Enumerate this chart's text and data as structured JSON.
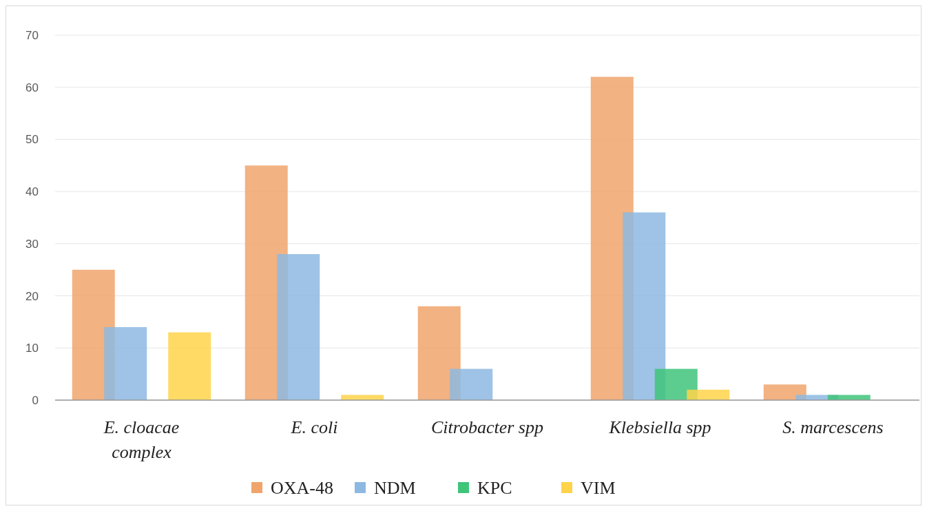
{
  "chart_data": {
    "type": "bar",
    "categories": [
      "E. cloacae complex",
      "E. coli",
      "Citrobacter spp",
      "Klebsiella spp",
      "S. marcescens"
    ],
    "series": [
      {
        "name": "OXA-48",
        "color": "#f0a46c",
        "values": [
          25,
          45,
          18,
          62,
          3
        ]
      },
      {
        "name": "NDM",
        "color": "#8db8e2",
        "values": [
          14,
          28,
          6,
          36,
          1
        ]
      },
      {
        "name": "KPC",
        "color": "#3fc47a",
        "values": [
          0,
          0,
          0,
          6,
          1
        ]
      },
      {
        "name": "VIM",
        "color": "#ffd34a",
        "values": [
          13,
          1,
          0,
          2,
          0
        ]
      }
    ],
    "ylim": [
      0,
      70
    ],
    "yticks": [
      0,
      10,
      20,
      30,
      40,
      50,
      60,
      70
    ],
    "grid": "y",
    "legend": "bottom"
  }
}
